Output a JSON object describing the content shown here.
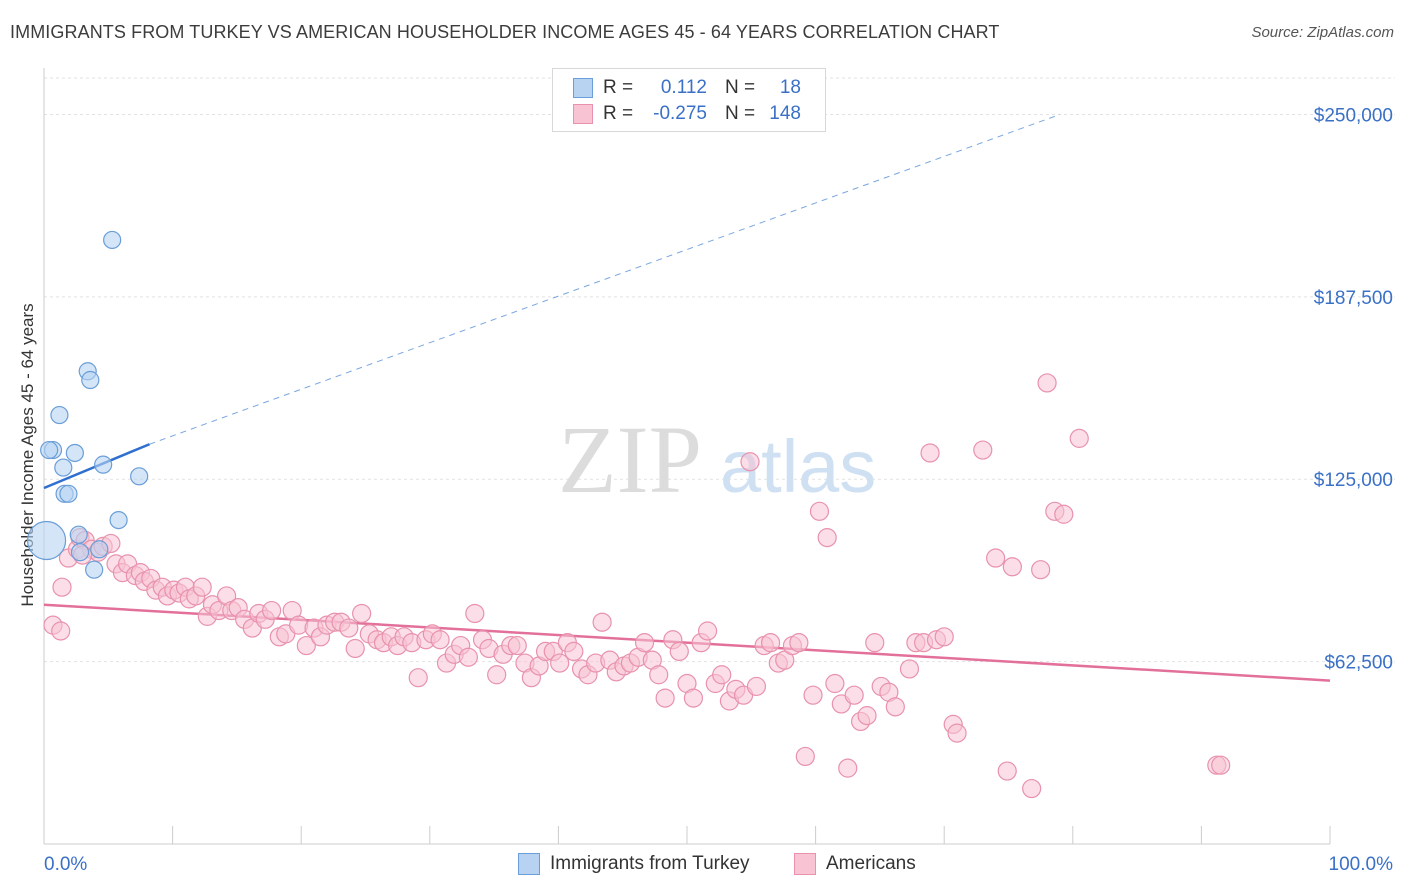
{
  "header": {
    "title": "IMMIGRANTS FROM TURKEY VS AMERICAN HOUSEHOLDER INCOME AGES 45 - 64 YEARS CORRELATION CHART",
    "source": "Source: ZipAtlas.com"
  },
  "watermark": {
    "zip": "ZIP",
    "atlas": "atlas"
  },
  "legend": {
    "rows": [
      {
        "r_label": "R =",
        "r_value": "0.112",
        "n_label": "N =",
        "n_value": "18"
      },
      {
        "r_label": "R =",
        "r_value": "-0.275",
        "n_label": "N =",
        "n_value": "148"
      }
    ]
  },
  "bottom_legend": {
    "series1": "Immigrants from Turkey",
    "series2": "Americans"
  },
  "colors": {
    "blue_fill": "#b8d3f2",
    "blue_stroke": "#6a9ed8",
    "blue_line": "#2f6fd0",
    "pink_fill": "#f8c3d3",
    "pink_stroke": "#e892ad",
    "pink_line": "#e2709a",
    "tick_text": "#3a70c6"
  },
  "chart_data": {
    "type": "scatter",
    "title": "IMMIGRANTS FROM TURKEY VS AMERICAN HOUSEHOLDER INCOME AGES 45 - 64 YEARS CORRELATION CHART",
    "xlabel": "",
    "ylabel": "Householder Income Ages 45 - 64 years",
    "xlim": [
      0,
      100
    ],
    "ylim": [
      0,
      262500
    ],
    "x_tick_labels": [
      "0.0%",
      "100.0%"
    ],
    "y_ticks": [
      62500,
      125000,
      187500,
      250000
    ],
    "y_tick_labels": [
      "$62,500",
      "$125,000",
      "$187,500",
      "$250,000"
    ],
    "grid": true,
    "legend_position": "top-center",
    "series": [
      {
        "name": "Immigrants from Turkey",
        "color": "#b8d3f2",
        "points": [
          [
            0.2,
            104000,
            "large"
          ],
          [
            0.7,
            135000
          ],
          [
            1.2,
            147000
          ],
          [
            1.5,
            129000
          ],
          [
            1.6,
            120000
          ],
          [
            1.9,
            120000
          ],
          [
            2.4,
            134000
          ],
          [
            2.7,
            106000
          ],
          [
            2.8,
            100000
          ],
          [
            3.4,
            162000
          ],
          [
            3.6,
            159000
          ],
          [
            3.9,
            94000
          ],
          [
            4.3,
            101000
          ],
          [
            4.6,
            130000
          ],
          [
            5.8,
            111000
          ],
          [
            5.3,
            207000
          ],
          [
            7.4,
            126000
          ],
          [
            0.4,
            135000
          ]
        ],
        "trend": {
          "x": [
            0,
            8.2
          ],
          "y": [
            122000,
            137000
          ],
          "extended_dashed_to": [
            79,
            250000
          ]
        }
      },
      {
        "name": "Americans",
        "color": "#f8c3d3",
        "points": [
          [
            0.7,
            75000
          ],
          [
            1.3,
            73000
          ],
          [
            1.4,
            88000
          ],
          [
            1.9,
            98000
          ],
          [
            2.6,
            101000
          ],
          [
            2.8,
            105000
          ],
          [
            3.2,
            104000
          ],
          [
            3.7,
            101000
          ],
          [
            4.2,
            100000
          ],
          [
            4.6,
            102000
          ],
          [
            5.2,
            103000
          ],
          [
            5.6,
            96000
          ],
          [
            6.1,
            93000
          ],
          [
            6.5,
            96000
          ],
          [
            7.1,
            92000
          ],
          [
            7.5,
            93000
          ],
          [
            7.8,
            90000
          ],
          [
            8.3,
            91000
          ],
          [
            8.7,
            87000
          ],
          [
            9.2,
            88000
          ],
          [
            9.6,
            85000
          ],
          [
            10.1,
            87000
          ],
          [
            10.5,
            86000
          ],
          [
            11.0,
            88000
          ],
          [
            11.3,
            84000
          ],
          [
            11.8,
            85000
          ],
          [
            12.3,
            88000
          ],
          [
            12.7,
            78000
          ],
          [
            13.1,
            82000
          ],
          [
            13.6,
            80000
          ],
          [
            14.2,
            85000
          ],
          [
            14.6,
            80000
          ],
          [
            15.1,
            81000
          ],
          [
            15.6,
            77000
          ],
          [
            16.2,
            74000
          ],
          [
            16.7,
            79000
          ],
          [
            17.2,
            77000
          ],
          [
            17.7,
            80000
          ],
          [
            18.3,
            71000
          ],
          [
            18.8,
            72000
          ],
          [
            19.3,
            80000
          ],
          [
            19.8,
            75000
          ],
          [
            20.4,
            68000
          ],
          [
            21.0,
            74000
          ],
          [
            21.5,
            71000
          ],
          [
            22.0,
            75000
          ],
          [
            22.6,
            76000
          ],
          [
            23.1,
            76000
          ],
          [
            23.7,
            74000
          ],
          [
            24.2,
            67000
          ],
          [
            24.7,
            79000
          ],
          [
            25.3,
            72000
          ],
          [
            25.9,
            70000
          ],
          [
            26.4,
            69000
          ],
          [
            27.0,
            71000
          ],
          [
            27.5,
            68000
          ],
          [
            28.0,
            71000
          ],
          [
            28.6,
            69000
          ],
          [
            29.1,
            57000
          ],
          [
            29.7,
            70000
          ],
          [
            30.2,
            72000
          ],
          [
            30.8,
            70000
          ],
          [
            31.3,
            62000
          ],
          [
            31.9,
            65000
          ],
          [
            32.4,
            68000
          ],
          [
            33.0,
            64000
          ],
          [
            33.5,
            79000
          ],
          [
            34.1,
            70000
          ],
          [
            34.6,
            67000
          ],
          [
            35.2,
            58000
          ],
          [
            35.7,
            65000
          ],
          [
            36.3,
            68000
          ],
          [
            36.8,
            68000
          ],
          [
            37.4,
            62000
          ],
          [
            37.9,
            57000
          ],
          [
            38.5,
            61000
          ],
          [
            39.0,
            66000
          ],
          [
            39.6,
            66000
          ],
          [
            40.1,
            62000
          ],
          [
            40.7,
            69000
          ],
          [
            41.2,
            66000
          ],
          [
            41.8,
            60000
          ],
          [
            42.3,
            58000
          ],
          [
            42.9,
            62000
          ],
          [
            43.4,
            76000
          ],
          [
            44.0,
            63000
          ],
          [
            44.5,
            59000
          ],
          [
            45.1,
            61000
          ],
          [
            45.6,
            62000
          ],
          [
            46.2,
            64000
          ],
          [
            46.7,
            69000
          ],
          [
            47.3,
            63000
          ],
          [
            47.8,
            58000
          ],
          [
            48.3,
            50000
          ],
          [
            48.9,
            70000
          ],
          [
            49.4,
            66000
          ],
          [
            50.0,
            55000
          ],
          [
            50.5,
            50000
          ],
          [
            51.1,
            69000
          ],
          [
            51.6,
            73000
          ],
          [
            52.2,
            55000
          ],
          [
            52.7,
            58000
          ],
          [
            53.3,
            49000
          ],
          [
            53.8,
            53000
          ],
          [
            54.4,
            51000
          ],
          [
            54.9,
            131000
          ],
          [
            55.4,
            54000
          ],
          [
            56.0,
            68000
          ],
          [
            56.5,
            69000
          ],
          [
            57.1,
            62000
          ],
          [
            57.6,
            63000
          ],
          [
            58.2,
            68000
          ],
          [
            58.7,
            69000
          ],
          [
            59.2,
            30000
          ],
          [
            59.8,
            51000
          ],
          [
            60.3,
            114000
          ],
          [
            60.9,
            105000
          ],
          [
            61.5,
            55000
          ],
          [
            62.0,
            48000
          ],
          [
            62.5,
            26000
          ],
          [
            63.0,
            51000
          ],
          [
            63.5,
            42000
          ],
          [
            64.0,
            44000
          ],
          [
            64.6,
            69000
          ],
          [
            65.1,
            54000
          ],
          [
            65.7,
            52000
          ],
          [
            66.2,
            47000
          ],
          [
            67.3,
            60000
          ],
          [
            67.8,
            69000
          ],
          [
            68.4,
            69000
          ],
          [
            68.9,
            134000
          ],
          [
            69.4,
            70000
          ],
          [
            70.0,
            71000
          ],
          [
            70.7,
            41000
          ],
          [
            71.0,
            38000
          ],
          [
            73.0,
            135000
          ],
          [
            74.0,
            98000
          ],
          [
            74.9,
            25000
          ],
          [
            75.3,
            95000
          ],
          [
            76.8,
            19000
          ],
          [
            77.5,
            94000
          ],
          [
            78.0,
            158000
          ],
          [
            78.6,
            114000
          ],
          [
            79.3,
            113000
          ],
          [
            80.5,
            139000
          ],
          [
            91.2,
            27000
          ],
          [
            91.5,
            27000
          ],
          [
            3.0,
            99000
          ]
        ],
        "trend": {
          "x": [
            0,
            100
          ],
          "y": [
            82000,
            56000
          ]
        }
      }
    ]
  }
}
